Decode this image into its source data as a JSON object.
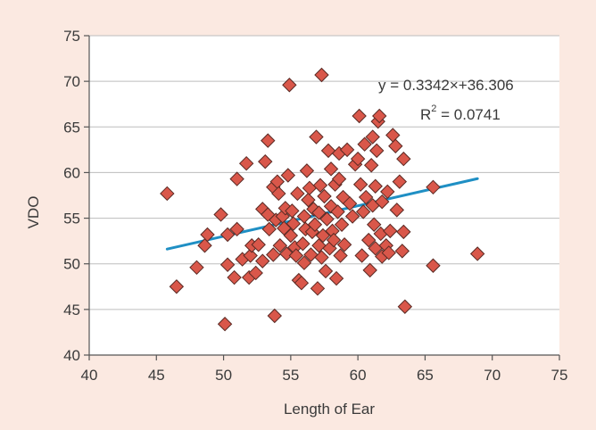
{
  "chart_data": {
    "type": "scatter",
    "title": "",
    "xlabel": "Length of Ear",
    "ylabel": "VDO",
    "xlim": [
      40,
      75
    ],
    "ylim": [
      40,
      75
    ],
    "x_ticks": [
      "40",
      "45",
      "50",
      "55",
      "60",
      "65",
      "70",
      "75"
    ],
    "y_ticks": [
      "40",
      "45",
      "50",
      "55",
      "60",
      "65",
      "70",
      "75"
    ],
    "grid": "horizontal",
    "marker": "diamond",
    "marker_color": "#d9574a",
    "trendline": {
      "equation": "y = 0.3342×+36.306",
      "r2_prefix": "R",
      "r2_exp": "2",
      "r2_value": " = 0.0741",
      "slope": 0.3342,
      "intercept": 36.306,
      "x_range": [
        45.8,
        68.9
      ],
      "color": "#1f8fc4"
    },
    "points": [
      [
        45.8,
        57.7
      ],
      [
        46.5,
        47.5
      ],
      [
        48.0,
        49.6
      ],
      [
        48.6,
        52.0
      ],
      [
        48.8,
        53.2
      ],
      [
        49.8,
        55.4
      ],
      [
        50.1,
        43.4
      ],
      [
        50.3,
        49.9
      ],
      [
        50.3,
        53.2
      ],
      [
        50.8,
        48.5
      ],
      [
        51.0,
        59.3
      ],
      [
        51.0,
        53.8
      ],
      [
        51.4,
        50.5
      ],
      [
        51.7,
        61.0
      ],
      [
        51.9,
        48.5
      ],
      [
        52.0,
        50.9
      ],
      [
        52.1,
        52.0
      ],
      [
        52.4,
        49.0
      ],
      [
        52.6,
        52.1
      ],
      [
        52.9,
        50.3
      ],
      [
        52.9,
        56.0
      ],
      [
        53.1,
        61.2
      ],
      [
        53.3,
        63.5
      ],
      [
        53.3,
        55.4
      ],
      [
        53.4,
        53.8
      ],
      [
        53.7,
        51.0
      ],
      [
        53.7,
        58.4
      ],
      [
        53.8,
        44.3
      ],
      [
        53.9,
        54.8
      ],
      [
        54.0,
        59.0
      ],
      [
        54.1,
        57.7
      ],
      [
        54.2,
        52.0
      ],
      [
        54.4,
        55.2
      ],
      [
        54.5,
        53.9
      ],
      [
        54.6,
        56.1
      ],
      [
        54.7,
        51.1
      ],
      [
        54.8,
        59.7
      ],
      [
        54.9,
        69.6
      ],
      [
        55.0,
        53.1
      ],
      [
        55.1,
        55.8
      ],
      [
        55.2,
        54.4
      ],
      [
        55.3,
        51.8
      ],
      [
        55.4,
        50.9
      ],
      [
        55.5,
        57.7
      ],
      [
        55.6,
        48.2
      ],
      [
        55.8,
        47.9
      ],
      [
        55.9,
        52.2
      ],
      [
        56.0,
        55.2
      ],
      [
        56.0,
        50.1
      ],
      [
        56.1,
        53.8
      ],
      [
        56.2,
        60.2
      ],
      [
        56.3,
        57.0
      ],
      [
        56.4,
        58.3
      ],
      [
        56.5,
        51.0
      ],
      [
        56.6,
        53.5
      ],
      [
        56.7,
        56.0
      ],
      [
        56.8,
        54.3
      ],
      [
        56.9,
        63.9
      ],
      [
        57.0,
        47.3
      ],
      [
        57.1,
        52.0
      ],
      [
        57.1,
        55.6
      ],
      [
        57.2,
        58.6
      ],
      [
        57.3,
        70.7
      ],
      [
        57.3,
        50.7
      ],
      [
        57.4,
        53.1
      ],
      [
        57.5,
        57.4
      ],
      [
        57.6,
        49.2
      ],
      [
        57.7,
        54.9
      ],
      [
        57.8,
        62.4
      ],
      [
        57.9,
        51.7
      ],
      [
        58.0,
        60.4
      ],
      [
        58.0,
        56.3
      ],
      [
        58.1,
        53.6
      ],
      [
        58.2,
        52.6
      ],
      [
        58.3,
        58.7
      ],
      [
        58.4,
        48.4
      ],
      [
        58.5,
        55.7
      ],
      [
        58.6,
        62.1
      ],
      [
        58.6,
        59.3
      ],
      [
        58.7,
        50.9
      ],
      [
        58.8,
        54.3
      ],
      [
        58.9,
        57.3
      ],
      [
        59.0,
        52.1
      ],
      [
        59.2,
        62.5
      ],
      [
        59.4,
        56.6
      ],
      [
        59.6,
        55.2
      ],
      [
        59.8,
        60.9
      ],
      [
        60.0,
        61.5
      ],
      [
        60.1,
        66.2
      ],
      [
        60.2,
        58.7
      ],
      [
        60.3,
        50.9
      ],
      [
        60.4,
        55.7
      ],
      [
        60.5,
        63.1
      ],
      [
        60.6,
        57.3
      ],
      [
        60.8,
        52.6
      ],
      [
        60.9,
        49.3
      ],
      [
        61.0,
        60.8
      ],
      [
        61.1,
        56.4
      ],
      [
        61.1,
        63.9
      ],
      [
        61.2,
        54.3
      ],
      [
        61.3,
        58.5
      ],
      [
        61.3,
        51.7
      ],
      [
        61.4,
        62.4
      ],
      [
        61.5,
        65.6
      ],
      [
        61.6,
        66.2
      ],
      [
        61.7,
        53.3
      ],
      [
        61.8,
        56.8
      ],
      [
        61.8,
        50.8
      ],
      [
        62.1,
        52.0
      ],
      [
        62.2,
        57.9
      ],
      [
        62.3,
        51.2
      ],
      [
        62.4,
        53.6
      ],
      [
        62.6,
        64.1
      ],
      [
        62.8,
        62.9
      ],
      [
        62.9,
        55.9
      ],
      [
        63.1,
        59.0
      ],
      [
        63.3,
        51.4
      ],
      [
        63.4,
        53.5
      ],
      [
        63.4,
        61.5
      ],
      [
        63.5,
        45.3
      ],
      [
        65.6,
        58.4
      ],
      [
        65.6,
        49.8
      ],
      [
        68.9,
        51.1
      ]
    ]
  }
}
